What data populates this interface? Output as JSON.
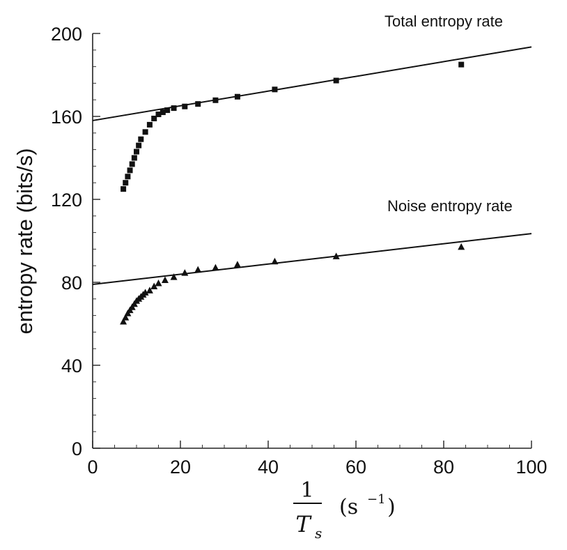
{
  "chart_data": {
    "type": "scatter",
    "title": "",
    "ylabel": "entropy rate (bits/s)",
    "xlabel": {
      "numerator": "1",
      "denominator": "T",
      "denominator_subscript": "s",
      "unit_open": "(s",
      "unit_exponent": "−1",
      "unit_close": ")"
    },
    "xlim": [
      0,
      100
    ],
    "ylim": [
      0,
      200
    ],
    "x_ticks": [
      0,
      20,
      40,
      60,
      80,
      100
    ],
    "y_ticks": [
      0,
      40,
      80,
      120,
      160,
      200
    ],
    "grid": false,
    "annotations": [
      {
        "text": "Total entropy rate"
      },
      {
        "text": "Noise entropy rate"
      }
    ],
    "series": [
      {
        "marker": "square",
        "x": [
          7,
          7.5,
          8,
          8.5,
          9,
          9.5,
          10,
          10.5,
          11,
          12,
          13,
          14,
          15,
          16,
          17,
          18.5,
          21,
          24,
          28,
          33,
          41.5,
          55.5,
          84
        ],
        "y": [
          125,
          128,
          131,
          134,
          137,
          140,
          143,
          146,
          149,
          152.5,
          156,
          159,
          161,
          162,
          163,
          164,
          164.8,
          166,
          167.8,
          169.5,
          173,
          177.3,
          185
        ]
      },
      {
        "marker": "triangle",
        "x": [
          7,
          7.5,
          8,
          8.5,
          9,
          9.5,
          10,
          10.5,
          11,
          11.5,
          12,
          13,
          14,
          15,
          16.5,
          18.5,
          21,
          24,
          28,
          33,
          41.5,
          55.5,
          84
        ],
        "y": [
          61,
          63,
          65,
          66.5,
          68,
          69.5,
          71,
          72,
          73,
          74,
          75,
          76,
          78,
          79.5,
          81,
          82.5,
          84.5,
          86,
          87,
          88.5,
          90,
          92.5,
          97
        ]
      }
    ],
    "fit_lines": [
      {
        "x": [
          0,
          100
        ],
        "y": [
          158,
          193.5
        ]
      },
      {
        "x": [
          0,
          100
        ],
        "y": [
          79,
          103.5
        ]
      }
    ]
  }
}
